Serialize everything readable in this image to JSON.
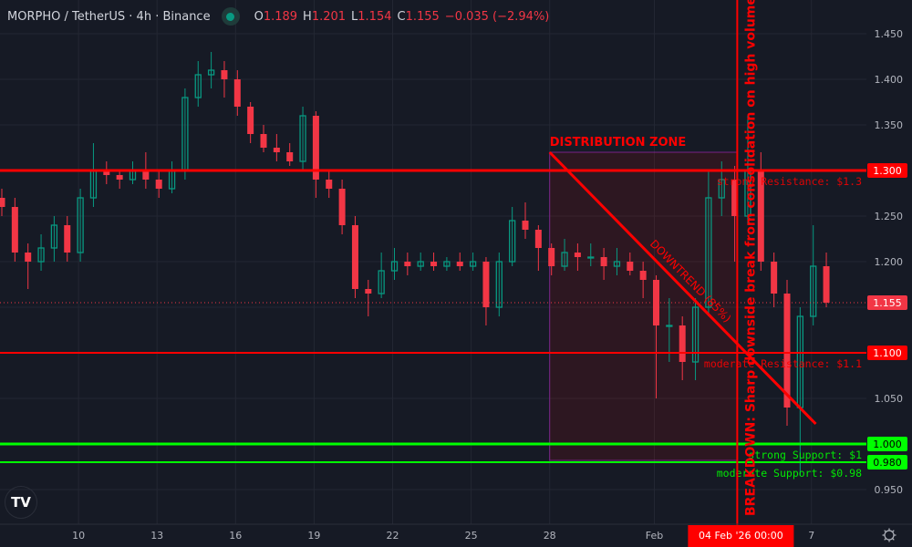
{
  "header": {
    "symbol": "MORPHO / TetherUS · 4h · Binance",
    "status_color": "#089981",
    "ohlc": {
      "o_label": "O",
      "o": "1.189",
      "h_label": "H",
      "h": "1.201",
      "l_label": "L",
      "l": "1.154",
      "c_label": "C",
      "c": "1.155",
      "change": "−0.035 (−2.94%)"
    }
  },
  "chart_data": {
    "type": "candlestick",
    "title": "",
    "start": "2026-01-07",
    "interval_hours": 12,
    "candles": [
      [
        1.27,
        1.28,
        1.25,
        1.26
      ],
      [
        1.26,
        1.27,
        1.2,
        1.21
      ],
      [
        1.21,
        1.22,
        1.17,
        1.2
      ],
      [
        1.2,
        1.23,
        1.19,
        1.215
      ],
      [
        1.215,
        1.25,
        1.2,
        1.24
      ],
      [
        1.24,
        1.25,
        1.2,
        1.21
      ],
      [
        1.21,
        1.28,
        1.2,
        1.27
      ],
      [
        1.27,
        1.33,
        1.26,
        1.3
      ],
      [
        1.3,
        1.31,
        1.285,
        1.295
      ],
      [
        1.295,
        1.3,
        1.28,
        1.29
      ],
      [
        1.29,
        1.31,
        1.285,
        1.3
      ],
      [
        1.3,
        1.32,
        1.28,
        1.29
      ],
      [
        1.29,
        1.3,
        1.27,
        1.28
      ],
      [
        1.28,
        1.31,
        1.275,
        1.3
      ],
      [
        1.3,
        1.39,
        1.29,
        1.38
      ],
      [
        1.38,
        1.42,
        1.37,
        1.405
      ],
      [
        1.405,
        1.43,
        1.39,
        1.41
      ],
      [
        1.41,
        1.42,
        1.38,
        1.4
      ],
      [
        1.4,
        1.41,
        1.36,
        1.37
      ],
      [
        1.37,
        1.375,
        1.33,
        1.34
      ],
      [
        1.34,
        1.35,
        1.32,
        1.325
      ],
      [
        1.325,
        1.34,
        1.31,
        1.32
      ],
      [
        1.32,
        1.33,
        1.305,
        1.31
      ],
      [
        1.31,
        1.37,
        1.3,
        1.36
      ],
      [
        1.36,
        1.365,
        1.27,
        1.29
      ],
      [
        1.29,
        1.3,
        1.27,
        1.28
      ],
      [
        1.28,
        1.29,
        1.23,
        1.24
      ],
      [
        1.24,
        1.25,
        1.16,
        1.17
      ],
      [
        1.17,
        1.18,
        1.14,
        1.165
      ],
      [
        1.165,
        1.21,
        1.16,
        1.19
      ],
      [
        1.19,
        1.215,
        1.18,
        1.2
      ],
      [
        1.2,
        1.21,
        1.185,
        1.195
      ],
      [
        1.195,
        1.21,
        1.19,
        1.2
      ],
      [
        1.2,
        1.21,
        1.19,
        1.195
      ],
      [
        1.195,
        1.205,
        1.19,
        1.2
      ],
      [
        1.2,
        1.21,
        1.19,
        1.195
      ],
      [
        1.195,
        1.21,
        1.19,
        1.2
      ],
      [
        1.2,
        1.205,
        1.13,
        1.15
      ],
      [
        1.15,
        1.21,
        1.14,
        1.2
      ],
      [
        1.2,
        1.26,
        1.195,
        1.245
      ],
      [
        1.245,
        1.265,
        1.225,
        1.235
      ],
      [
        1.235,
        1.24,
        1.19,
        1.215
      ],
      [
        1.215,
        1.22,
        1.185,
        1.195
      ],
      [
        1.195,
        1.225,
        1.19,
        1.21
      ],
      [
        1.21,
        1.22,
        1.19,
        1.205
      ],
      [
        1.205,
        1.22,
        1.195,
        1.205
      ],
      [
        1.205,
        1.215,
        1.18,
        1.195
      ],
      [
        1.195,
        1.215,
        1.185,
        1.2
      ],
      [
        1.2,
        1.21,
        1.185,
        1.19
      ],
      [
        1.19,
        1.2,
        1.16,
        1.18
      ],
      [
        1.18,
        1.185,
        1.05,
        1.13
      ],
      [
        1.13,
        1.16,
        1.09,
        1.13
      ],
      [
        1.13,
        1.14,
        1.07,
        1.09
      ],
      [
        1.09,
        1.16,
        1.07,
        1.15
      ],
      [
        1.15,
        1.3,
        1.14,
        1.27
      ],
      [
        1.27,
        1.31,
        1.25,
        1.29
      ],
      [
        1.29,
        1.305,
        1.2,
        1.25
      ],
      [
        1.25,
        1.36,
        1.24,
        1.3
      ],
      [
        1.3,
        1.32,
        1.19,
        1.2
      ],
      [
        1.2,
        1.21,
        1.15,
        1.165
      ],
      [
        1.165,
        1.18,
        1.02,
        1.04
      ],
      [
        1.04,
        1.15,
        0.965,
        1.14
      ],
      [
        1.14,
        1.24,
        1.13,
        1.195
      ],
      [
        1.195,
        1.21,
        1.15,
        1.155
      ]
    ],
    "up_color": "#089981",
    "down_color": "#f23645",
    "ylim": [
      0.93,
      1.47
    ],
    "y_ticks": [
      "1.450",
      "1.400",
      "1.350",
      "1.250",
      "1.200",
      "1.050",
      "0.950"
    ],
    "x_ticks": [
      {
        "label": "10",
        "date": "2026-01-10"
      },
      {
        "label": "13",
        "date": "2026-01-13"
      },
      {
        "label": "16",
        "date": "2026-01-16"
      },
      {
        "label": "19",
        "date": "2026-01-19"
      },
      {
        "label": "22",
        "date": "2026-01-22"
      },
      {
        "label": "25",
        "date": "2026-01-25"
      },
      {
        "label": "28",
        "date": "2026-01-28"
      },
      {
        "label": "Feb",
        "date": "2026-02-01"
      },
      {
        "label": "7",
        "date": "2026-02-07"
      }
    ],
    "grid": true,
    "last_price": {
      "value": 1.155,
      "label": "1.155",
      "color": "#f23645"
    },
    "levels": [
      {
        "price": 1.3,
        "label": "1.300",
        "text": "strong Resistance: $1.3",
        "color": "#ff0000",
        "strong": true
      },
      {
        "price": 1.1,
        "label": "1.100",
        "text": "moderate Resistance: $1.1",
        "color": "#ff0000",
        "strong": false
      },
      {
        "price": 1.0,
        "label": "1.000",
        "text": "strong Support: $1",
        "color": "#00ff00",
        "strong": true
      },
      {
        "price": 0.98,
        "label": "0.980",
        "text": "moderate Support: $0.98",
        "color": "#00ff00",
        "strong": false
      }
    ],
    "zone": {
      "label": "DISTRIBUTION ZONE",
      "from": "2026-01-28",
      "to": "2026-02-04T04:00",
      "top": 1.32,
      "bottom": 0.982,
      "color": "#ff0000",
      "border": "#9c27b0"
    },
    "trendline": {
      "label": "DOWNTREND (85%)",
      "from": {
        "date": "2026-01-28",
        "price": 1.32
      },
      "to": {
        "date": "2026-02-07T04:00",
        "price": 1.022
      },
      "color": "#ff0000"
    },
    "event": {
      "date": "2026-02-04T04:00",
      "label": "BREAKDOWN: Sharp downside break from consolidation on high volume",
      "axis_label": "04 Feb '26   00:00",
      "color": "#ff0000"
    }
  },
  "branding": {
    "logo": "TV"
  }
}
